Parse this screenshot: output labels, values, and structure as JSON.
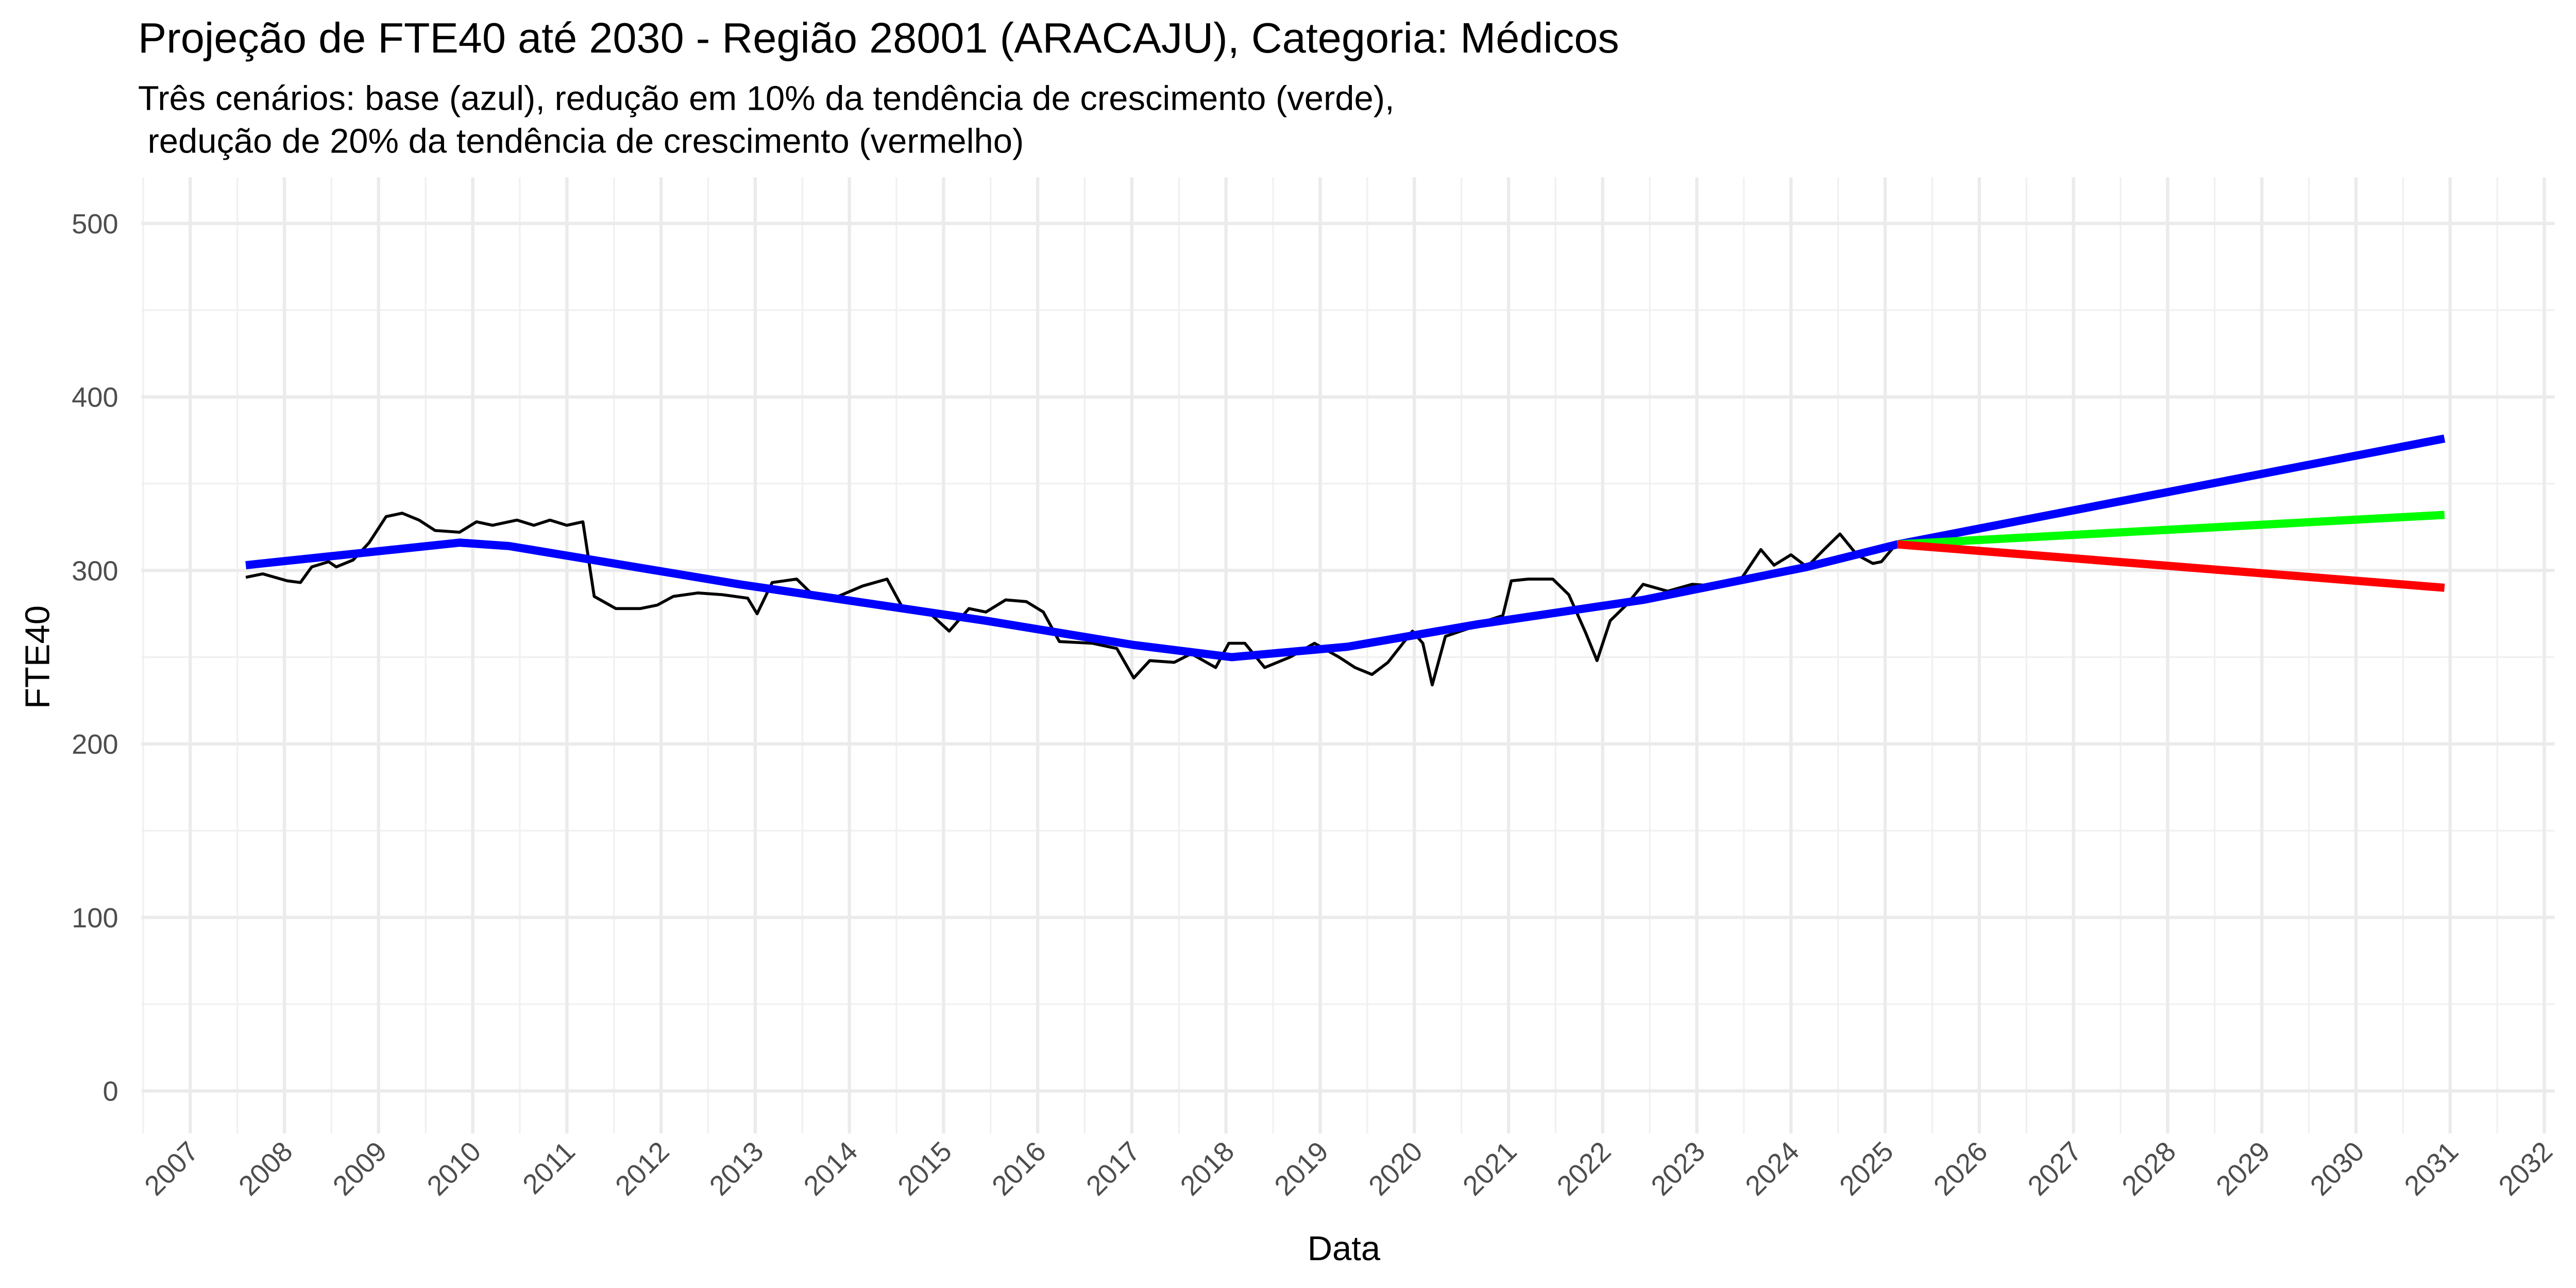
{
  "chart_data": {
    "type": "line",
    "title": "Projeção de FTE40 até 2030 - Região 28001 (ARACAJU), Categoria: Médicos",
    "subtitle": [
      "Três cenários: base (azul), redução em 10% da tendência de crescimento (verde),",
      " redução de 20% da tendência de crescimento (vermelho)"
    ],
    "x_label": "Data",
    "y_label": "FTE40",
    "xlim": [
      2006.48,
      2032.11
    ],
    "ylim": [
      -24.6,
      526.5
    ],
    "xticks": [
      2007,
      2008,
      2009,
      2010,
      2011,
      2012,
      2013,
      2014,
      2015,
      2016,
      2017,
      2018,
      2019,
      2020,
      2021,
      2022,
      2023,
      2024,
      2025,
      2026,
      2027,
      2028,
      2029,
      2030,
      2031,
      2032
    ],
    "x_minor_ticks": [
      2006.5,
      2007.5,
      2008.5,
      2009.5,
      2010.5,
      2011.5,
      2012.5,
      2013.5,
      2014.5,
      2015.5,
      2016.5,
      2017.5,
      2018.5,
      2019.5,
      2020.5,
      2021.5,
      2022.5,
      2023.5,
      2024.5,
      2025.5,
      2026.5,
      2027.5,
      2028.5,
      2029.5,
      2030.5,
      2031.5
    ],
    "yticks": [
      0,
      100,
      200,
      300,
      400,
      500
    ],
    "y_minor_ticks": [
      50,
      150,
      250,
      350,
      450
    ],
    "grid": true,
    "series": [
      {
        "color": "#000000",
        "width": 1.8,
        "x": [
          2007.59,
          2007.77,
          2008.03,
          2008.17,
          2008.29,
          2008.47,
          2008.55,
          2008.73,
          2008.9,
          2009.08,
          2009.25,
          2009.43,
          2009.6,
          2009.86,
          2010.04,
          2010.21,
          2010.47,
          2010.65,
          2010.82,
          2011.0,
          2011.17,
          2011.29,
          2011.52,
          2011.78,
          2011.96,
          2012.13,
          2012.39,
          2012.65,
          2012.92,
          2013.02,
          2013.18,
          2013.44,
          2013.61,
          2013.88,
          2014.14,
          2014.4,
          2014.57,
          2014.84,
          2015.06,
          2015.27,
          2015.45,
          2015.66,
          2015.88,
          2016.06,
          2016.23,
          2016.58,
          2016.84,
          2017.02,
          2017.19,
          2017.45,
          2017.63,
          2017.89,
          2018.03,
          2018.2,
          2018.41,
          2018.68,
          2018.94,
          2019.2,
          2019.37,
          2019.55,
          2019.72,
          2019.98,
          2020.09,
          2020.19,
          2020.33,
          2020.6,
          2020.77,
          2020.94,
          2021.03,
          2021.21,
          2021.47,
          2021.64,
          2021.82,
          2021.94,
          2022.08,
          2022.25,
          2022.43,
          2022.69,
          2022.95,
          2023.21,
          2023.47,
          2023.68,
          2023.82,
          2024.0,
          2024.17,
          2024.35,
          2024.52,
          2024.7,
          2024.87,
          2024.96,
          2025.13
        ],
        "values": [
          296,
          298,
          294,
          293,
          302,
          305,
          302,
          306,
          316,
          331,
          333,
          329,
          323,
          322,
          328,
          326,
          329,
          326,
          329,
          326,
          328,
          285,
          278,
          278,
          280,
          285,
          287,
          286,
          284,
          275,
          293,
          295,
          286,
          285,
          291,
          295,
          278,
          276,
          265,
          278,
          276,
          283,
          282,
          276,
          259,
          258,
          255,
          238,
          248,
          247,
          252,
          244,
          258,
          258,
          244,
          250,
          258,
          250,
          244,
          240,
          247,
          265,
          258,
          234,
          262,
          267,
          271,
          274,
          294,
          295,
          295,
          286,
          264,
          248,
          271,
          280,
          292,
          288,
          292,
          291,
          295,
          312,
          303,
          309,
          302,
          312,
          321,
          309,
          304,
          305,
          316
        ]
      },
      {
        "color": "#0000ff",
        "width": 5,
        "x": [
          2007.59,
          2009.86,
          2010.39,
          2012.83,
          2015.45,
          2017.02,
          2018.06,
          2019.29,
          2020.68,
          2022.43,
          2024.17,
          2025.13,
          2030.94
        ],
        "values": [
          303,
          316,
          314,
          292,
          271,
          257,
          250,
          256,
          269,
          283,
          302,
          315,
          376
        ]
      },
      {
        "color": "#00ff00",
        "width": 5,
        "x": [
          2025.13,
          2030.94
        ],
        "values": [
          315,
          332
        ]
      },
      {
        "color": "#ff0000",
        "width": 5,
        "x": [
          2025.13,
          2030.94
        ],
        "values": [
          315,
          290
        ]
      }
    ]
  }
}
